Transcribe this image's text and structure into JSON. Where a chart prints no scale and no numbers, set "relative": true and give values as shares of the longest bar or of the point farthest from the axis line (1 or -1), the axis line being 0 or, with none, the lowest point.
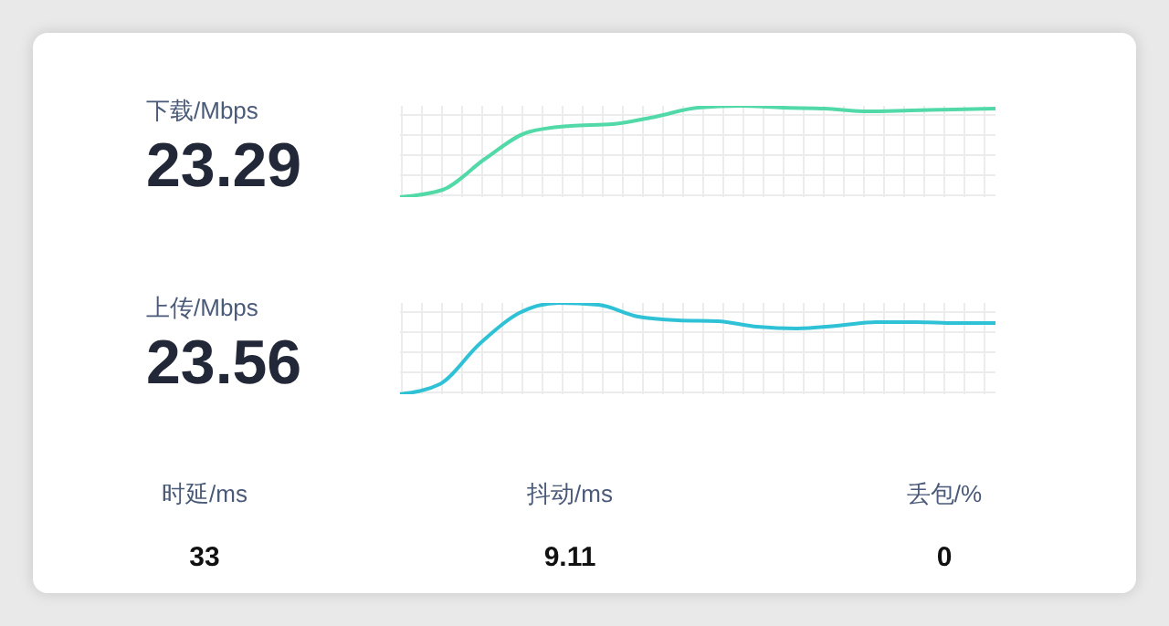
{
  "chart_data": [
    {
      "type": "line",
      "title": "下载/Mbps",
      "annotations": [
        "23.29"
      ],
      "relative": true,
      "grid": true,
      "categories": [
        null,
        null,
        null,
        null,
        null,
        null,
        null,
        null,
        null,
        null,
        null,
        null,
        null,
        null,
        null
      ],
      "series": [
        {
          "color": "#52d9a8",
          "values": [
            0,
            0.08,
            0.42,
            0.71,
            0.78,
            0.8,
            0.88,
            0.98,
            1,
            0.98,
            0.97,
            0.94,
            0.95,
            0.96,
            0.97
          ]
        }
      ]
    },
    {
      "type": "line",
      "title": "上传/Mbps",
      "annotations": [
        "23.56"
      ],
      "relative": true,
      "grid": true,
      "categories": [
        null,
        null,
        null,
        null,
        null,
        null,
        null,
        null,
        null,
        null,
        null,
        null,
        null,
        null,
        null,
        null
      ],
      "series": [
        {
          "color": "#2fc1d6",
          "values": [
            0,
            0.11,
            0.55,
            0.89,
            1,
            0.98,
            0.85,
            0.81,
            0.8,
            0.74,
            0.72,
            0.75,
            0.79,
            0.79,
            0.78,
            0.78
          ]
        }
      ]
    },
    {
      "type": "other",
      "annotations": [
        "时延/ms",
        "33",
        "抖动/ms",
        "9.11",
        "丢包/%",
        "0"
      ]
    }
  ]
}
